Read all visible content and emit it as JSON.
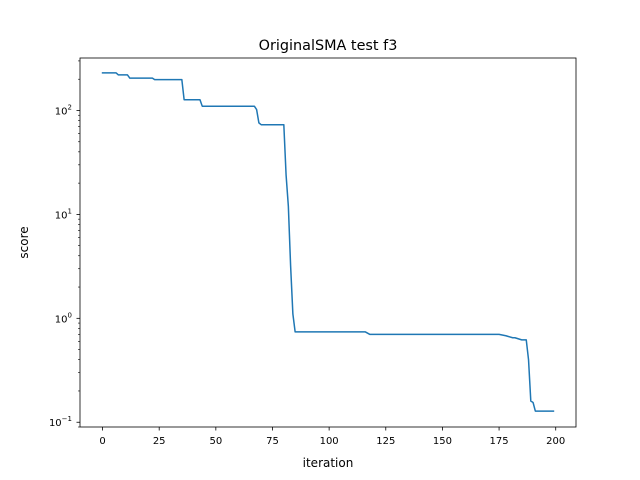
{
  "chart_data": {
    "type": "line",
    "title": "OriginalSMA test f3",
    "xlabel": "iteration",
    "ylabel": "score",
    "xlim": [
      -9.95,
      208.95
    ],
    "ylim": [
      0.09,
      320
    ],
    "yscale": "log",
    "grid": false,
    "x_ticks": [
      0,
      25,
      50,
      75,
      100,
      125,
      150,
      175,
      200
    ],
    "x_tick_labels": [
      "0",
      "25",
      "50",
      "75",
      "100",
      "125",
      "150",
      "175",
      "200"
    ],
    "y_ticks": [
      0.1,
      1,
      10,
      100
    ],
    "y_tick_labels": [
      "10",
      "10",
      "10",
      "10"
    ],
    "y_tick_exponents": [
      "−1",
      "0",
      "1",
      "2"
    ],
    "series": [
      {
        "color": "#1f77b4",
        "x": [
          0,
          6,
          7,
          11,
          12,
          22,
          23,
          35,
          36,
          43,
          44,
          67,
          68,
          69,
          70,
          72,
          80,
          81,
          82,
          83,
          84,
          85,
          86,
          87,
          116,
          118,
          175,
          178,
          181,
          182,
          185,
          187,
          188,
          189,
          190,
          191,
          199
        ],
        "y": [
          230,
          230,
          220,
          220,
          205,
          205,
          198,
          198,
          127,
          127,
          110,
          110,
          102,
          76,
          73,
          73,
          73,
          24,
          12,
          3.2,
          1.1,
          0.74,
          0.74,
          0.74,
          0.74,
          0.7,
          0.7,
          0.68,
          0.65,
          0.65,
          0.62,
          0.62,
          0.4,
          0.16,
          0.155,
          0.128,
          0.128
        ]
      }
    ]
  }
}
